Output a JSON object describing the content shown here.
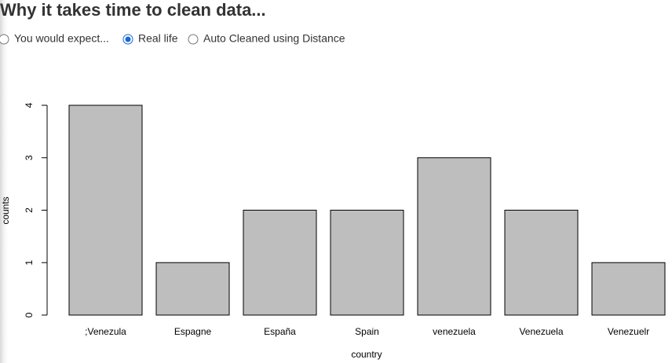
{
  "title": "Why it takes time to clean data...",
  "radio_options": [
    {
      "label": "You would expect...",
      "checked": false
    },
    {
      "label": "Real life",
      "checked": true
    },
    {
      "label": "Auto Cleaned using Distance",
      "checked": false
    }
  ],
  "chart_data": {
    "type": "bar",
    "categories": [
      ";Venezula",
      "Espagne",
      "España",
      "Spain",
      "venezuela",
      "Venezuela",
      "Venezuelr"
    ],
    "values": [
      4,
      1,
      2,
      2,
      3,
      2,
      1
    ],
    "color": "#bebebe",
    "xlabel": "country",
    "ylabel": "counts",
    "ylim": [
      0,
      4
    ],
    "yticks": [
      0,
      1,
      2,
      3,
      4
    ],
    "grid": false
  }
}
